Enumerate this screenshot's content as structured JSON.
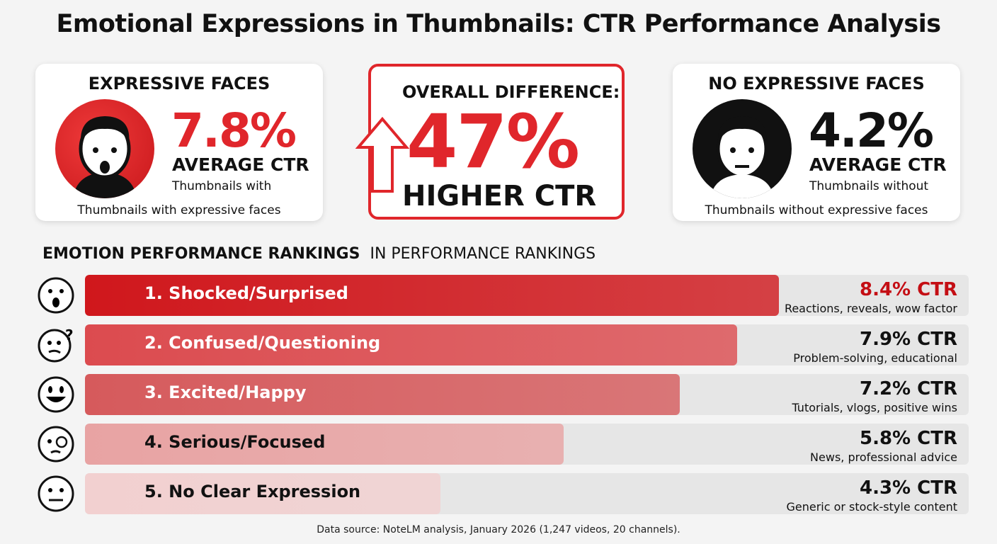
{
  "title": "Emotional Expressions in Thumbnails: CTR Performance Analysis",
  "colors": {
    "accent": "#e0262b",
    "dark_red": "#c40e14"
  },
  "left_card": {
    "heading": "EXPRESSIVE FACES",
    "value": "7.8%",
    "metric": "AVERAGE CTR",
    "sub": "Thumbnails with",
    "footer": "Thumbnails with expressive faces",
    "icon": "surprised-face-avatar-icon"
  },
  "center_card": {
    "heading": "OVERALL DIFFERENCE:",
    "value": "47%",
    "sub": "HIGHER CTR",
    "icon": "up-arrow-icon"
  },
  "right_card": {
    "heading": "NO EXPRESSIVE FACES",
    "value": "4.2%",
    "metric": "AVERAGE CTR",
    "sub": "Thumbnails without",
    "footer": "Thumbnails without expressive faces",
    "icon": "neutral-face-avatar-icon"
  },
  "section": {
    "title": "EMOTION PERFORMANCE RANKINGS",
    "subtitle": "IN PERFORMANCE RANKINGS"
  },
  "chart_data": {
    "type": "bar",
    "orientation": "horizontal",
    "xlim": [
      0,
      10.7
    ],
    "categories": [
      "1. Shocked/Surprised",
      "2. Confused/Questioning",
      "3. Excited/Happy",
      "4. Serious/Focused",
      "5. No Clear Expression"
    ],
    "values": [
      8.4,
      7.9,
      7.2,
      5.8,
      4.3
    ],
    "value_labels": [
      "8.4% CTR",
      "7.9% CTR",
      "7.2% CTR",
      "5.8% CTR",
      "4.3% CTR"
    ],
    "descriptions": [
      "Reactions, reveals, wow factor",
      "Problem-solving, educational",
      "Tutorials, vlogs, positive wins",
      "News, professional advice",
      "Generic or stock-style content"
    ],
    "icons": [
      "shocked-emoji-icon",
      "thinking-emoji-icon",
      "grinning-emoji-icon",
      "monocle-emoji-icon",
      "neutral-emoji-icon"
    ],
    "bar_colors": [
      "#d0171c",
      "#dc4b4f",
      "#d65a5c",
      "#e8a3a3",
      "#f2d0d0"
    ],
    "label_colors": [
      "#fff",
      "#fff",
      "#fff",
      "#111",
      "#111"
    ],
    "value_label_colors": [
      "#c40e14",
      "#111",
      "#111",
      "#111",
      "#111"
    ]
  },
  "source": "Data source: NoteLM analysis, January 2026 (1,247 videos, 20 channels)."
}
